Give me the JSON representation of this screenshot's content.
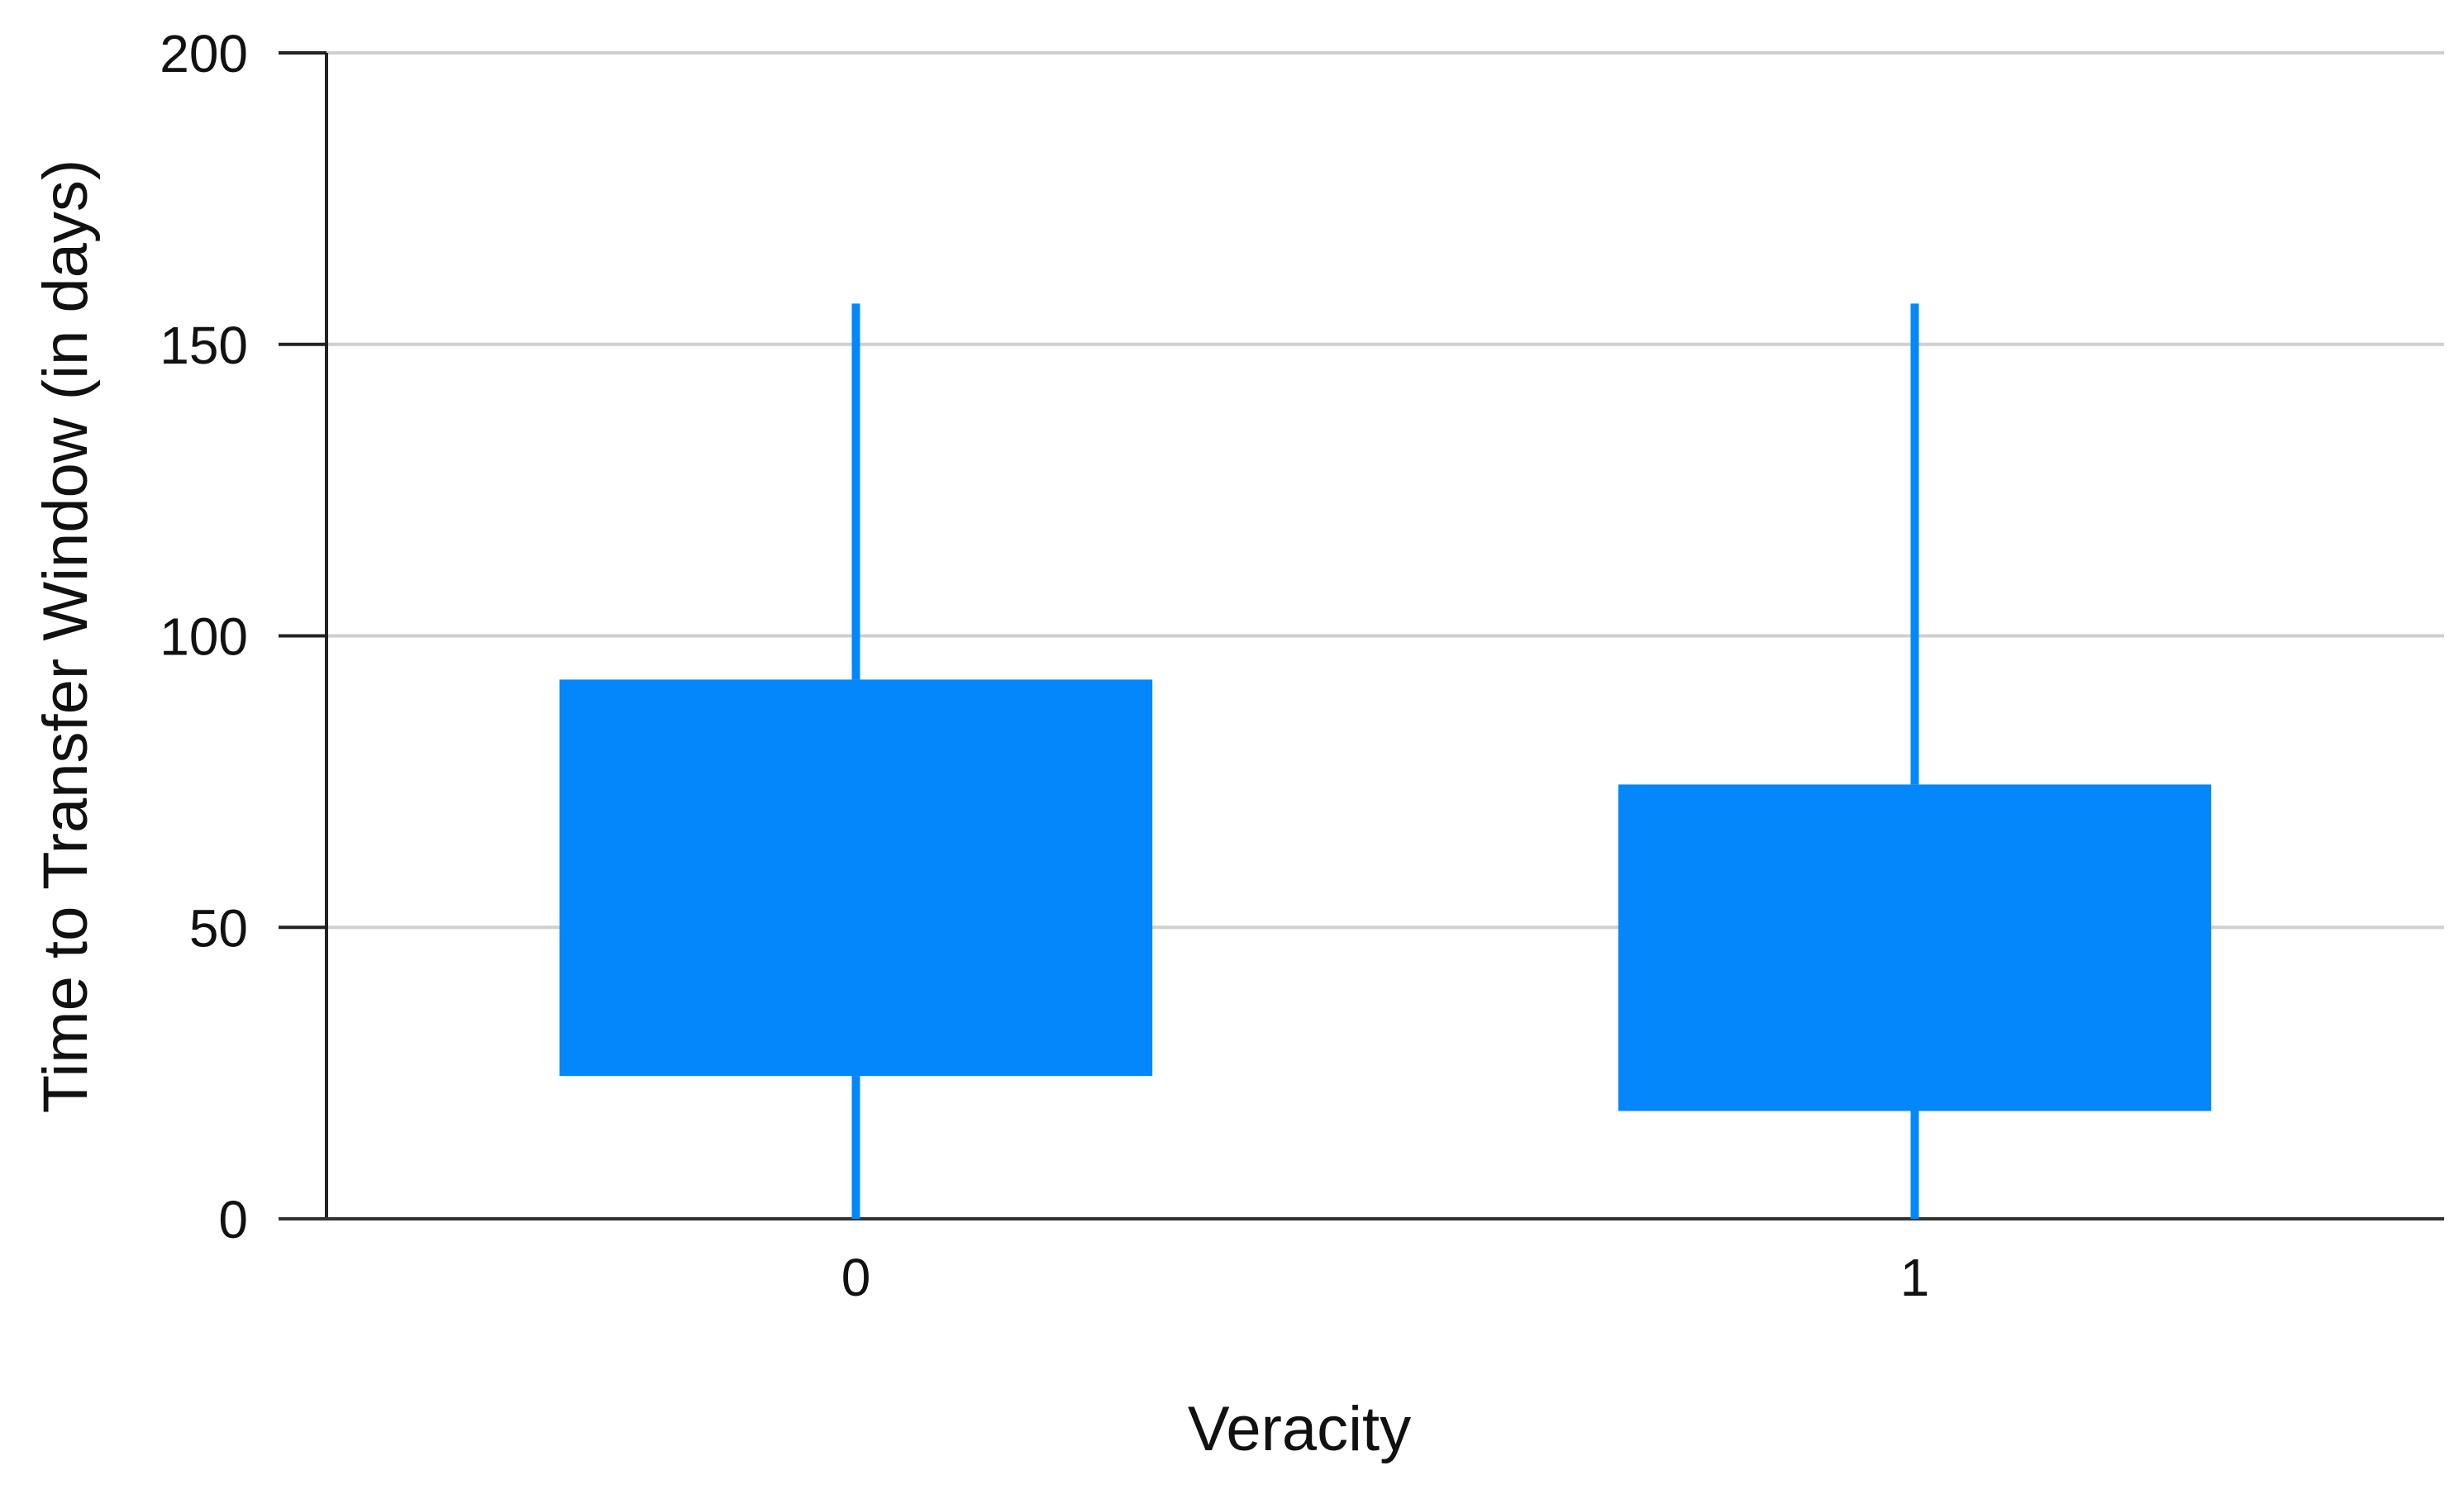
{
  "chart_data": {
    "type": "box",
    "x_label": "Veracity",
    "y_label": "Time to Transfer Window (in days)",
    "categories": [
      "0",
      "1"
    ],
    "low": [
      0,
      0
    ],
    "q1": [
      24.5,
      18.5
    ],
    "q3": [
      92.5,
      74.5
    ],
    "high": [
      157,
      157
    ],
    "color": "#0387fb",
    "ylim": [
      0,
      200
    ],
    "yticks": [
      0,
      50,
      100,
      150,
      200
    ],
    "grid": true
  }
}
